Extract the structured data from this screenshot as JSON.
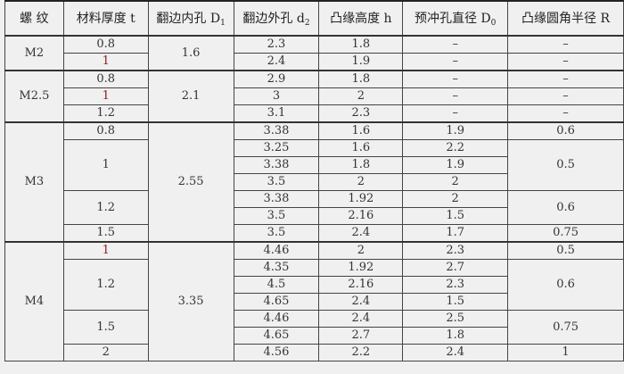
{
  "header": {
    "thread": "螺 纹",
    "t": "材料厚度 t",
    "D1": {
      "text": "翻边内孔 D",
      "sub": "1"
    },
    "d2": {
      "text": "翻边外孔 d",
      "sub": "2"
    },
    "h": "凸缘高度 h",
    "D0": {
      "text": "预冲孔直径 D",
      "sub": "0"
    },
    "R": "凸缘圆角半径 R"
  },
  "colors": {
    "background": "#f0f0f0",
    "border": "#444444",
    "highlight_text": "#8b1a1a"
  },
  "groups": [
    {
      "thread": "M2",
      "D1": "1.6",
      "subgroups": [
        {
          "t": "0.8",
          "rows": [
            {
              "d2": "2.3",
              "h": "1.8",
              "D0": "–",
              "R": "–"
            }
          ]
        },
        {
          "t": "1",
          "highlight": true,
          "rows": [
            {
              "d2": "2.4",
              "h": "1.9",
              "D0": "–",
              "R": "–"
            }
          ]
        }
      ]
    },
    {
      "thread": "M2.5",
      "D1": "2.1",
      "subgroups": [
        {
          "t": "0.8",
          "rows": [
            {
              "d2": "2.9",
              "h": "1.8",
              "D0": "–",
              "R": "–"
            }
          ]
        },
        {
          "t": "1",
          "highlight": true,
          "rows": [
            {
              "d2": "3",
              "h": "2",
              "D0": "–",
              "R": "–"
            }
          ]
        },
        {
          "t": "1.2",
          "rows": [
            {
              "d2": "3.1",
              "h": "2.3",
              "D0": "–",
              "R": "–"
            }
          ]
        }
      ]
    },
    {
      "thread": "M3",
      "D1": "2.55",
      "subgroups": [
        {
          "t": "0.8",
          "R": "0.6",
          "rows": [
            {
              "d2": "3.38",
              "h": "1.6",
              "D0": "1.9"
            }
          ]
        },
        {
          "t": "1",
          "R": "0.5",
          "rows": [
            {
              "d2": "3.25",
              "h": "1.6",
              "D0": "2.2"
            },
            {
              "d2": "3.38",
              "h": "1.8",
              "D0": "1.9"
            },
            {
              "d2": "3.5",
              "h": "2",
              "D0": "2"
            }
          ]
        },
        {
          "t": "1.2",
          "R": "0.6",
          "rows": [
            {
              "d2": "3.38",
              "h": "1.92",
              "D0": "2"
            },
            {
              "d2": "3.5",
              "h": "2.16",
              "D0": "1.5"
            }
          ]
        },
        {
          "t": "1.5",
          "R": "0.75",
          "rows": [
            {
              "d2": "3.5",
              "h": "2.4",
              "D0": "1.7"
            }
          ]
        }
      ]
    },
    {
      "thread": "M4",
      "D1": "3.35",
      "subgroups": [
        {
          "t": "1",
          "highlight": true,
          "R": "0.5",
          "rows": [
            {
              "d2": "4.46",
              "h": "2",
              "D0": "2.3"
            }
          ]
        },
        {
          "t": "1.2",
          "R": "0.6",
          "rows": [
            {
              "d2": "4.35",
              "h": "1.92",
              "D0": "2.7"
            },
            {
              "d2": "4.5",
              "h": "2.16",
              "D0": "2.3"
            },
            {
              "d2": "4.65",
              "h": "2.4",
              "D0": "1.5"
            }
          ]
        },
        {
          "t": "1.5",
          "R": "0.75",
          "rows": [
            {
              "d2": "4.46",
              "h": "2.4",
              "D0": "2.5"
            },
            {
              "d2": "4.65",
              "h": "2.7",
              "D0": "1.8"
            }
          ]
        },
        {
          "t": "2",
          "R": "1",
          "rows": [
            {
              "d2": "4.56",
              "h": "2.2",
              "D0": "2.4"
            }
          ]
        }
      ]
    }
  ]
}
